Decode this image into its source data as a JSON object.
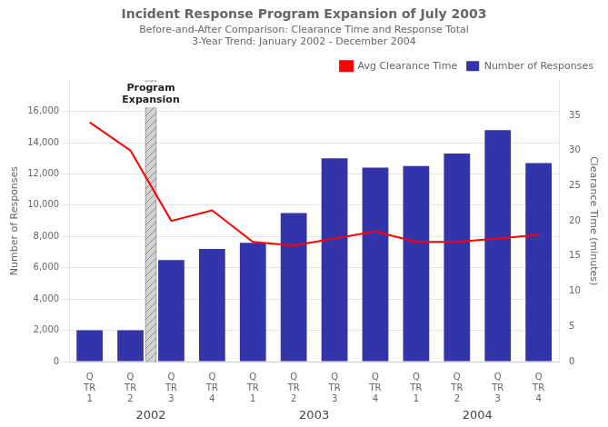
{
  "chart_data": {
    "type": "bar",
    "title": "Incident Response Program Expansion of July 2003",
    "subtitle": "Before-and-After Comparison: Clearance Time and Response Total",
    "subtitle2": "3-Year Trend: January 2002 - December 2004",
    "categories": [
      "Q\nTR\n1",
      "Q\nTR\n2",
      "Q\nTR\n3",
      "Q\nTR\n4",
      "Q\nTR\n1",
      "Q\nTR\n2",
      "Q\nTR\n3",
      "Q\nTR\n4",
      "Q\nTR\n1",
      "Q\nTR\n2",
      "Q\nTR\n3",
      "Q\nTR\n4"
    ],
    "year_labels": [
      "2002",
      "2003",
      "2004"
    ],
    "series": [
      {
        "name": "Number of Responses",
        "type": "bar",
        "color": "#3333AA",
        "values": [
          2000,
          2000,
          6500,
          7200,
          7600,
          9500,
          13000,
          12400,
          12500,
          13300,
          14800,
          12700
        ]
      },
      {
        "name": "Avg Clearance Time",
        "type": "line",
        "color": "#FF0000",
        "axis": "y2",
        "values": [
          34.0,
          30.0,
          20.0,
          21.5,
          17.0,
          16.5,
          17.5,
          18.5,
          17.0,
          17.0,
          17.5,
          18.0
        ]
      }
    ],
    "ylabel": "Number of Responses",
    "y2label": "Clearance Time (minutes)",
    "ylim": [
      0,
      18000
    ],
    "yticks": [
      0,
      {
        "value": 2000,
        "label": "2,000"
      },
      {
        "value": 4000,
        "label": "4,000"
      },
      {
        "value": 6000,
        "label": "6,000"
      },
      {
        "value": 8000,
        "label": "8,000"
      },
      {
        "value": 10000,
        "label": "10,000"
      },
      {
        "value": 12000,
        "label": "12,000"
      },
      {
        "value": 14000,
        "label": "14,000"
      },
      {
        "value": 16000,
        "label": "16,000"
      }
    ],
    "y2lim": [
      0,
      40
    ],
    "y2ticks": [
      0,
      5,
      10,
      15,
      20,
      25,
      30,
      35
    ],
    "grid": true,
    "legend": "upper right",
    "annotations": [
      {
        "text": "Program\nExpansion",
        "x": 1.5
      }
    ]
  }
}
